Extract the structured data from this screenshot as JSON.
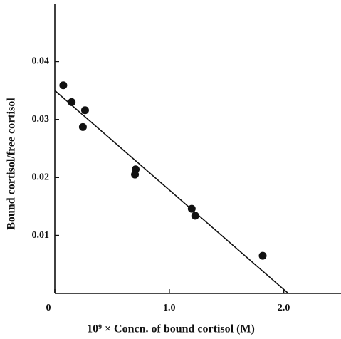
{
  "chart_data": {
    "type": "scatter",
    "x_label": "10⁹ × Concn. of bound cortisol (M)",
    "y_label": "Bound cortisol/free cortisol",
    "x": [
      0.074,
      0.147,
      0.245,
      0.264,
      0.706,
      0.7,
      1.196,
      1.227,
      1.816
    ],
    "values": [
      0.0359,
      0.033,
      0.0287,
      0.0316,
      0.0214,
      0.0205,
      0.0146,
      0.0134,
      0.0065
    ],
    "color": "#111111",
    "fit_line": {
      "x": [
        0,
        2.04
      ],
      "y": [
        0.035,
        0
      ]
    },
    "xlim": [
      0,
      2.5
    ],
    "ylim": [
      0,
      0.05
    ],
    "xticks": [
      0,
      {
        "value": 1,
        "label": "1.0"
      },
      {
        "value": 2,
        "label": "2.0"
      }
    ],
    "yticks": [
      0.01,
      0.02,
      0.03,
      0.04
    ]
  }
}
